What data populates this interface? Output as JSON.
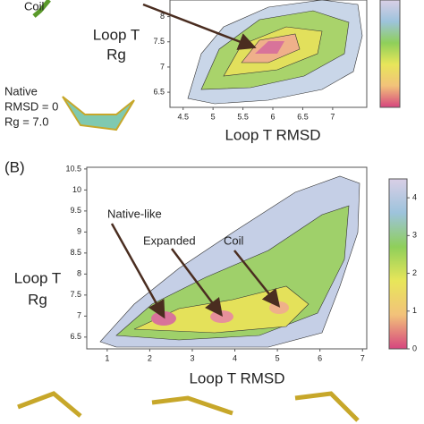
{
  "chart_data": [
    {
      "type": "contour",
      "xlabel": "Loop T RMSD",
      "ylabel_lines": [
        "Loop T",
        "Rg"
      ],
      "xlim": [
        4.28,
        7.57
      ],
      "ylim": [
        6.2,
        8.33
      ],
      "xticks": [
        4.5,
        5,
        5.5,
        6,
        6.5,
        7
      ],
      "yticks": [
        6.5,
        7,
        7.5,
        8
      ],
      "annotations": [
        {
          "text": "Coil"
        },
        {
          "text": "Native"
        },
        {
          "text": "RMSD = 0"
        },
        {
          "text": "Rg = 7.0"
        }
      ]
    },
    {
      "type": "contour",
      "panel_label": "(B)",
      "xlabel": "Loop T RMSD",
      "ylabel_lines": [
        "Loop T",
        "Rg"
      ],
      "xlim": [
        0.52,
        7.1
      ],
      "ylim": [
        6.22,
        10.54
      ],
      "xticks": [
        1,
        2,
        3,
        4,
        5,
        6,
        7
      ],
      "yticks": [
        6.5,
        7,
        7.5,
        8,
        8.5,
        9,
        9.5,
        10,
        10.5
      ],
      "clim": [
        0,
        4.5
      ],
      "cticks": [
        0,
        1,
        2,
        3,
        4
      ],
      "annotations": [
        {
          "text": "Native-like"
        },
        {
          "text": "Expanded"
        },
        {
          "text": "Coil"
        }
      ]
    }
  ]
}
